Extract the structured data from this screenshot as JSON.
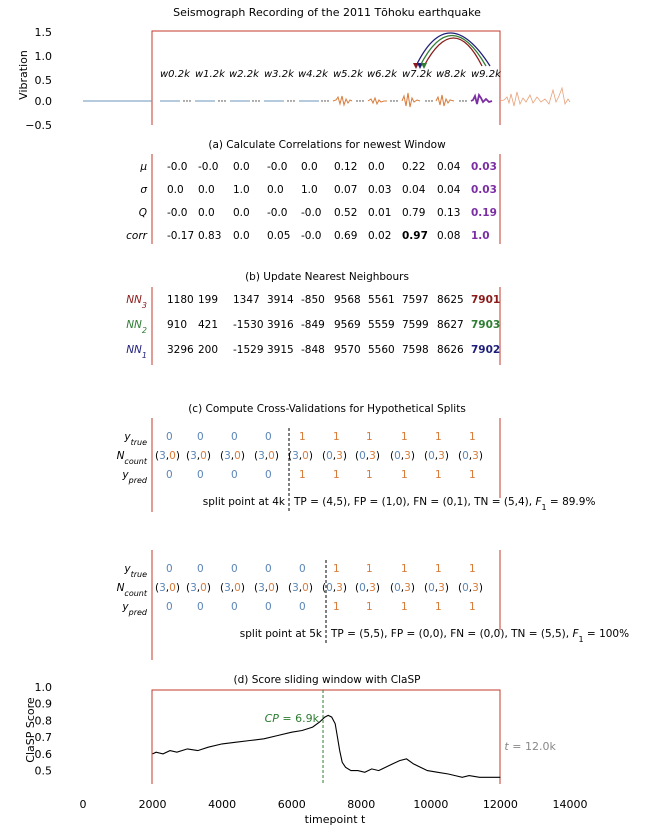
{
  "title": "Seismograph Recording of the 2011 Tōhoku earthquake",
  "top_plot": {
    "ylabel": "Vibration",
    "yticks": [
      "1.5",
      "1.0",
      "0.5",
      "0.0",
      "−0.5"
    ],
    "windows": [
      "w0.2k",
      "w1.2k",
      "w2.2k",
      "w3.2k",
      "w4.2k",
      "w5.2k",
      "w6.2k",
      "w7.2k",
      "w8.2k",
      "w9.2k"
    ],
    "arc_colors": {
      "nn1": "#1f1f7a",
      "nn2": "#2e7d32",
      "nn3": "#8b1a1a",
      "newest": "#6a1b9a"
    },
    "series_colors": {
      "blue": "#6e94bd",
      "orange": "#d97b3a",
      "purple": "#7b2ea3",
      "light_orange": "#e9a27a"
    }
  },
  "section_a": {
    "title": "(a) Calculate Correlations for newest Window",
    "rows": [
      {
        "label": "μ",
        "values": [
          "-0.0",
          "-0.0",
          "0.0",
          "-0.0",
          "0.0",
          "0.12",
          "0.0",
          "0.22",
          "0.04",
          "0.03"
        ]
      },
      {
        "label": "σ",
        "values": [
          "0.0",
          "0.0",
          "1.0",
          "0.0",
          "1.0",
          "0.07",
          "0.03",
          "0.04",
          "0.04",
          "0.03"
        ]
      },
      {
        "label": "Q",
        "values": [
          "-0.0",
          "0.0",
          "0.0",
          "-0.0",
          "-0.0",
          "0.52",
          "0.01",
          "0.79",
          "0.13",
          "0.19"
        ]
      },
      {
        "label": "corr",
        "values": [
          "-0.17",
          "0.83",
          "0.0",
          "0.05",
          "-0.0",
          "0.69",
          "0.02",
          "0.97",
          "0.08",
          "1.0"
        ]
      }
    ]
  },
  "section_b": {
    "title": "(b) Update Nearest Neighbours",
    "rows": [
      {
        "label": "NN3",
        "color": "#8b1a1a",
        "values": [
          "1180",
          "199",
          "1347",
          "3914",
          "-850",
          "9568",
          "5561",
          "7597",
          "8625",
          "7901"
        ]
      },
      {
        "label": "NN2",
        "color": "#2e7d32",
        "values": [
          "910",
          "421",
          "-1530",
          "3916",
          "-849",
          "9569",
          "5559",
          "7599",
          "8627",
          "7903"
        ]
      },
      {
        "label": "NN1",
        "color": "#1f1f7a",
        "values": [
          "3296",
          "200",
          "-1529",
          "3915",
          "-848",
          "9570",
          "5560",
          "7598",
          "8626",
          "7902"
        ]
      }
    ]
  },
  "section_c": {
    "title": "(c) Compute Cross-Validations for Hypothetical Splits",
    "row_labels": [
      "ytrue",
      "Ncount",
      "ypred"
    ],
    "blocks": [
      {
        "ytrue": [
          "0",
          "0",
          "0",
          "0",
          "1",
          "1",
          "1",
          "1",
          "1",
          "1"
        ],
        "ncount": [
          [
            "3",
            "0"
          ],
          [
            "3",
            "0"
          ],
          [
            "3",
            "0"
          ],
          [
            "3",
            "0"
          ],
          [
            "3",
            "0"
          ],
          [
            "0",
            "3"
          ],
          [
            "0",
            "3"
          ],
          [
            "0",
            "3"
          ],
          [
            "0",
            "3"
          ],
          [
            "0",
            "3"
          ]
        ],
        "ypred": [
          "0",
          "0",
          "0",
          "0",
          "1",
          "1",
          "1",
          "1",
          "1",
          "1"
        ],
        "split_label": "split point at 4k",
        "metrics": "TP = (4,5), FP = (1,0), FN = (0,1), TN = (5,4), F1 = 89.9%"
      },
      {
        "ytrue": [
          "0",
          "0",
          "0",
          "0",
          "0",
          "1",
          "1",
          "1",
          "1",
          "1"
        ],
        "ncount": [
          [
            "3",
            "0"
          ],
          [
            "3",
            "0"
          ],
          [
            "3",
            "0"
          ],
          [
            "3",
            "0"
          ],
          [
            "3",
            "0"
          ],
          [
            "0",
            "3"
          ],
          [
            "0",
            "3"
          ],
          [
            "0",
            "3"
          ],
          [
            "0",
            "3"
          ],
          [
            "0",
            "3"
          ]
        ],
        "ypred": [
          "0",
          "0",
          "0",
          "0",
          "0",
          "1",
          "1",
          "1",
          "1",
          "1"
        ],
        "split_label": "split point at 5k",
        "metrics": "TP = (5,5), FP = (0,0), FN = (0,0), TN = (5,5), F1 = 100%"
      }
    ]
  },
  "chart_data": {
    "type": "line",
    "title": "(d) Score sliding window with ClaSP",
    "xlabel": "timepoint t",
    "ylabel": "ClaSP Score",
    "xlim": [
      0,
      14000
    ],
    "ylim": [
      0.42,
      1.0
    ],
    "xticks": [
      0,
      2000,
      4000,
      6000,
      8000,
      10000,
      12000,
      14000
    ],
    "yticks": [
      0.5,
      0.6,
      0.7,
      0.8,
      0.9,
      1.0
    ],
    "series": [
      {
        "color": "#000000",
        "x": [
          2000,
          2100,
          2300,
          2500,
          2700,
          3000,
          3300,
          3600,
          4000,
          4400,
          4800,
          5200,
          5600,
          6000,
          6300,
          6600,
          6800,
          6950,
          7050,
          7150,
          7250,
          7300,
          7380,
          7450,
          7550,
          7700,
          7900,
          8100,
          8300,
          8500,
          8700,
          8900,
          9100,
          9300,
          9500,
          9700,
          9900,
          10200,
          10500,
          10700,
          10900,
          11100,
          11400,
          11700,
          12000
        ],
        "y": [
          0.6,
          0.61,
          0.6,
          0.62,
          0.61,
          0.63,
          0.62,
          0.64,
          0.66,
          0.67,
          0.68,
          0.69,
          0.71,
          0.73,
          0.74,
          0.76,
          0.79,
          0.82,
          0.83,
          0.82,
          0.78,
          0.72,
          0.62,
          0.55,
          0.52,
          0.5,
          0.5,
          0.49,
          0.51,
          0.5,
          0.52,
          0.54,
          0.56,
          0.57,
          0.54,
          0.52,
          0.5,
          0.49,
          0.48,
          0.47,
          0.46,
          0.47,
          0.46,
          0.46,
          0.46
        ]
      }
    ],
    "annotations": [
      {
        "text": "CP = 6.9k",
        "x": 6900,
        "color": "#2e7d32"
      },
      {
        "text": "t = 12.0k",
        "x": 12000,
        "color": "#888888"
      }
    ]
  }
}
